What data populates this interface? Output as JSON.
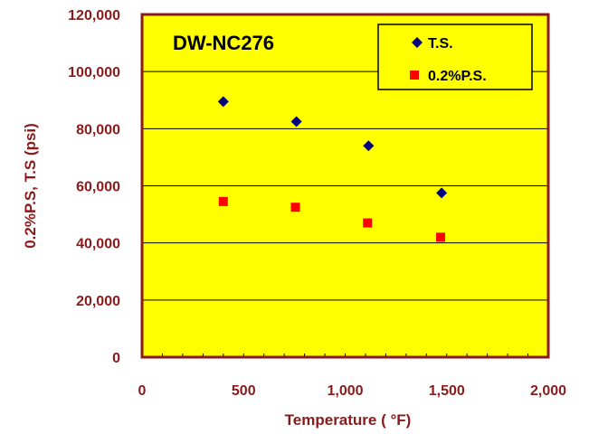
{
  "chart_data": {
    "type": "scatter",
    "title": "DW-NC276",
    "xlabel": "Temperature ( °F)",
    "ylabel": "0.2%P.S, T.S (psi)",
    "xlim": [
      0,
      2000
    ],
    "ylim": [
      0,
      120000
    ],
    "x_ticks": [
      "0",
      "500",
      "1,000",
      "1,500",
      "2,000"
    ],
    "y_ticks": [
      "0",
      "20,000",
      "40,000",
      "60,000",
      "80,000",
      "100,000",
      "120,000"
    ],
    "x_tick_values": [
      0,
      500,
      1000,
      1500,
      2000
    ],
    "y_tick_values": [
      0,
      20000,
      40000,
      60000,
      80000,
      100000,
      120000
    ],
    "grid": "horizontal",
    "legend_position": "top-right",
    "series": [
      {
        "name": "T.S.",
        "marker": "diamond",
        "color": "#000080",
        "points": [
          {
            "x": 400,
            "y": 89500
          },
          {
            "x": 760,
            "y": 82500
          },
          {
            "x": 1115,
            "y": 74000
          },
          {
            "x": 1475,
            "y": 57500
          }
        ]
      },
      {
        "name": "0.2%P.S.",
        "marker": "square",
        "color": "#FF0000",
        "points": [
          {
            "x": 400,
            "y": 54500
          },
          {
            "x": 755,
            "y": 52500
          },
          {
            "x": 1110,
            "y": 47000
          },
          {
            "x": 1470,
            "y": 42000
          }
        ]
      }
    ],
    "colors": {
      "plot_background": "#FFFF00",
      "axis_text": "#8B1A1A",
      "plot_border": "#8B1A1A",
      "gridline": "#000000"
    }
  }
}
